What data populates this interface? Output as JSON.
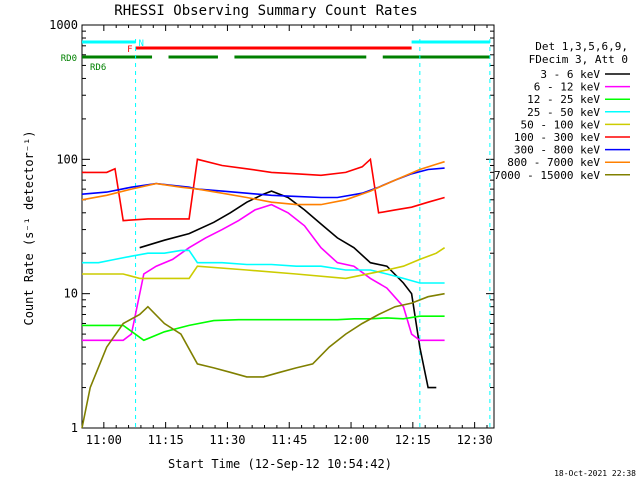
{
  "chart_data": {
    "type": "line",
    "title": "RHESSI Observing Summary Count Rates",
    "xlabel": "Start Time (12-Sep-12 10:54:42)",
    "ylabel": "Count Rate (s⁻¹ detector⁻¹)",
    "y_scale": "log",
    "xlim_minutes_after_10_54_42": [
      0,
      100
    ],
    "ylim": [
      1,
      1000
    ],
    "x_ticks": [
      "11:00",
      "11:15",
      "11:30",
      "11:45",
      "12:00",
      "12:15",
      "12:30"
    ],
    "y_ticks": [
      "1",
      "10",
      "100",
      "1000"
    ],
    "legend_position": "right",
    "legend_header": [
      "Det 1,3,5,6,9,",
      "FDecim 3, Att 0"
    ],
    "series": [
      {
        "name": "3 - 6 keV",
        "color": "#000000",
        "points": [
          [
            14,
            22
          ],
          [
            20,
            25
          ],
          [
            26,
            28
          ],
          [
            32,
            34
          ],
          [
            36,
            40
          ],
          [
            40,
            48
          ],
          [
            44,
            55
          ],
          [
            46,
            58
          ],
          [
            50,
            52
          ],
          [
            54,
            42
          ],
          [
            58,
            33
          ],
          [
            62,
            26
          ],
          [
            66,
            22
          ],
          [
            70,
            17
          ],
          [
            74,
            16
          ],
          [
            78,
            12
          ],
          [
            80,
            10
          ],
          [
            82,
            4
          ],
          [
            84,
            2
          ],
          [
            86,
            2
          ]
        ]
      },
      {
        "name": "6 - 12 keV",
        "color": "#ff00ff",
        "points": [
          [
            0,
            4.5
          ],
          [
            2,
            4.5
          ],
          [
            6,
            4.5
          ],
          [
            10,
            4.5
          ],
          [
            12,
            5
          ],
          [
            15,
            14
          ],
          [
            18,
            16
          ],
          [
            22,
            18
          ],
          [
            26,
            22
          ],
          [
            30,
            26
          ],
          [
            34,
            30
          ],
          [
            38,
            35
          ],
          [
            42,
            42
          ],
          [
            46,
            46
          ],
          [
            50,
            40
          ],
          [
            54,
            32
          ],
          [
            58,
            22
          ],
          [
            62,
            17
          ],
          [
            66,
            16
          ],
          [
            70,
            13
          ],
          [
            74,
            11
          ],
          [
            78,
            8
          ],
          [
            80,
            5
          ],
          [
            82,
            4.5
          ],
          [
            84,
            4.5
          ],
          [
            86,
            4.5
          ],
          [
            88,
            4.5
          ]
        ]
      },
      {
        "name": "12 - 25 keV",
        "color": "#00ff00",
        "points": [
          [
            0,
            5.8
          ],
          [
            10,
            5.8
          ],
          [
            15,
            4.5
          ],
          [
            20,
            5.2
          ],
          [
            26,
            5.8
          ],
          [
            32,
            6.3
          ],
          [
            38,
            6.4
          ],
          [
            44,
            6.4
          ],
          [
            50,
            6.4
          ],
          [
            56,
            6.4
          ],
          [
            62,
            6.4
          ],
          [
            66,
            6.5
          ],
          [
            70,
            6.5
          ],
          [
            74,
            6.6
          ],
          [
            78,
            6.5
          ],
          [
            82,
            6.8
          ],
          [
            88,
            6.8
          ]
        ]
      },
      {
        "name": "25 - 50 keV",
        "color": "#00ffff",
        "points": [
          [
            0,
            17
          ],
          [
            4,
            17
          ],
          [
            8,
            18
          ],
          [
            12,
            19
          ],
          [
            16,
            20
          ],
          [
            20,
            20
          ],
          [
            24,
            21
          ],
          [
            26,
            21
          ],
          [
            28,
            17
          ],
          [
            34,
            17
          ],
          [
            40,
            16.5
          ],
          [
            46,
            16.5
          ],
          [
            52,
            16
          ],
          [
            58,
            16
          ],
          [
            64,
            15
          ],
          [
            70,
            15
          ],
          [
            74,
            14
          ],
          [
            78,
            13
          ],
          [
            82,
            12
          ],
          [
            86,
            12
          ],
          [
            88,
            12
          ]
        ]
      },
      {
        "name": "50 - 100 keV",
        "color": "#cccc00",
        "points": [
          [
            0,
            14
          ],
          [
            6,
            14
          ],
          [
            10,
            14
          ],
          [
            14,
            13
          ],
          [
            18,
            13
          ],
          [
            22,
            13
          ],
          [
            26,
            13
          ],
          [
            28,
            16
          ],
          [
            40,
            15
          ],
          [
            52,
            14
          ],
          [
            64,
            13
          ],
          [
            74,
            15
          ],
          [
            78,
            16
          ],
          [
            82,
            18
          ],
          [
            86,
            20
          ],
          [
            88,
            22
          ]
        ]
      },
      {
        "name": "100 - 300 keV",
        "color": "#ff0000",
        "points": [
          [
            0,
            80
          ],
          [
            2,
            80
          ],
          [
            6,
            80
          ],
          [
            8,
            85
          ],
          [
            10,
            35
          ],
          [
            16,
            36
          ],
          [
            22,
            36
          ],
          [
            26,
            36
          ],
          [
            28,
            100
          ],
          [
            34,
            90
          ],
          [
            40,
            85
          ],
          [
            46,
            80
          ],
          [
            52,
            78
          ],
          [
            58,
            76
          ],
          [
            64,
            80
          ],
          [
            68,
            88
          ],
          [
            70,
            100
          ],
          [
            72,
            40
          ],
          [
            76,
            42
          ],
          [
            80,
            44
          ],
          [
            84,
            48
          ],
          [
            88,
            52
          ]
        ]
      },
      {
        "name": "300 - 800 keV",
        "color": "#0000ff",
        "points": [
          [
            0,
            55
          ],
          [
            6,
            57
          ],
          [
            12,
            62
          ],
          [
            18,
            66
          ],
          [
            22,
            64
          ],
          [
            26,
            62
          ],
          [
            28,
            60
          ],
          [
            34,
            58
          ],
          [
            40,
            56
          ],
          [
            46,
            54
          ],
          [
            52,
            53
          ],
          [
            58,
            52
          ],
          [
            62,
            52
          ],
          [
            68,
            56
          ],
          [
            72,
            62
          ],
          [
            76,
            70
          ],
          [
            80,
            78
          ],
          [
            84,
            84
          ],
          [
            88,
            86
          ]
        ]
      },
      {
        "name": "800 - 7000 keV",
        "color": "#ff8000",
        "points": [
          [
            0,
            50
          ],
          [
            6,
            54
          ],
          [
            12,
            60
          ],
          [
            18,
            66
          ],
          [
            24,
            62
          ],
          [
            28,
            60
          ],
          [
            34,
            56
          ],
          [
            40,
            52
          ],
          [
            46,
            48
          ],
          [
            52,
            46
          ],
          [
            58,
            46
          ],
          [
            64,
            50
          ],
          [
            70,
            58
          ],
          [
            76,
            70
          ],
          [
            82,
            84
          ],
          [
            86,
            92
          ],
          [
            88,
            96
          ]
        ]
      },
      {
        "name": "7000 - 15000 keV",
        "color": "#808000",
        "points": [
          [
            0,
            1
          ],
          [
            2,
            2
          ],
          [
            6,
            4
          ],
          [
            10,
            6
          ],
          [
            14,
            7
          ],
          [
            16,
            8
          ],
          [
            20,
            6
          ],
          [
            24,
            5
          ],
          [
            28,
            3
          ],
          [
            32,
            2.8
          ],
          [
            36,
            2.6
          ],
          [
            40,
            2.4
          ],
          [
            44,
            2.4
          ],
          [
            48,
            2.6
          ],
          [
            52,
            2.8
          ],
          [
            56,
            3
          ],
          [
            60,
            4
          ],
          [
            64,
            5
          ],
          [
            68,
            6
          ],
          [
            72,
            7
          ],
          [
            76,
            8
          ],
          [
            80,
            8.5
          ],
          [
            84,
            9.5
          ],
          [
            88,
            10
          ]
        ]
      }
    ],
    "flag_bars": [
      {
        "label": "N",
        "color": "#00ffff",
        "label_color": "#00ffff",
        "segments": [
          [
            0,
            13
          ],
          [
            80,
            99
          ]
        ]
      },
      {
        "label": "F",
        "color": "#ff0000",
        "label_color": "#ff0000",
        "segments": [
          [
            13,
            80
          ]
        ]
      },
      {
        "label": "RD0",
        "color": "#008000",
        "label_color": "#008000",
        "segments": [
          [
            0,
            17
          ],
          [
            21,
            33
          ],
          [
            37,
            69
          ],
          [
            73,
            99
          ]
        ]
      },
      {
        "label": "RD6",
        "color": "#008000",
        "label_color": "#008000",
        "segments": []
      }
    ],
    "footer": "18-Oct-2021 22:38"
  }
}
